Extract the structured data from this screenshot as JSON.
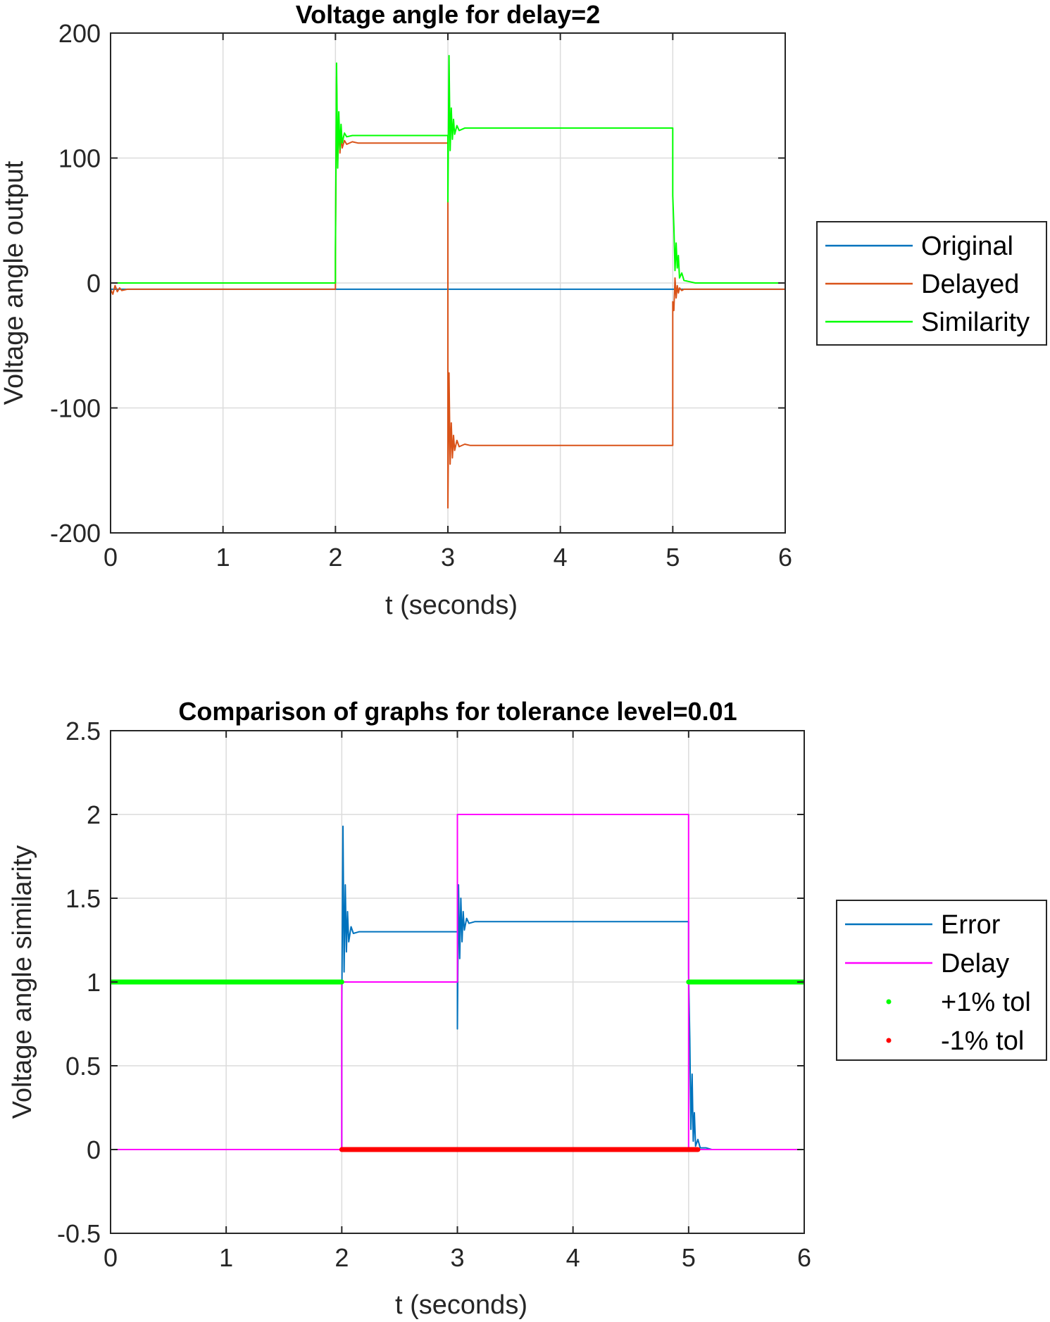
{
  "chart_data": [
    {
      "type": "line",
      "title": "Voltage angle for delay=2",
      "xlabel": "t (seconds)",
      "ylabel": "Voltage angle output",
      "xlim": [
        0,
        6
      ],
      "ylim": [
        -200,
        200
      ],
      "xticks": [
        0,
        1,
        2,
        3,
        4,
        5,
        6
      ],
      "yticks": [
        -200,
        -100,
        0,
        100,
        200
      ],
      "xtick_labels": [
        "0",
        "1",
        "2",
        "3",
        "4",
        "5",
        "6"
      ],
      "ytick_labels": [
        "-200",
        "-100",
        "0",
        "100",
        "200"
      ],
      "grid": true,
      "legend_position": "right",
      "series": [
        {
          "name": "Original",
          "color": "#0072BD",
          "x": [
            0,
            2,
            2.02,
            6
          ],
          "y": [
            -5,
            -5,
            -5,
            -5
          ]
        },
        {
          "name": "Delayed",
          "color": "#D95319",
          "x": [
            0,
            0.02,
            0.04,
            0.06,
            0.08,
            0.1,
            0.15,
            2,
            2,
            2.01,
            2.02,
            2.03,
            2.04,
            2.05,
            2.06,
            2.08,
            2.1,
            2.15,
            2.2,
            3,
            3,
            3.01,
            3.02,
            3.03,
            3.04,
            3.05,
            3.06,
            3.08,
            3.1,
            3.15,
            3.2,
            5,
            5,
            5.01,
            5.02,
            5.03,
            5.04,
            5.05,
            5.06,
            5.08,
            5.1,
            5.15,
            5.2,
            6
          ],
          "y": [
            -5,
            -9,
            -2,
            -7,
            -4,
            -6,
            -5,
            -5,
            20,
            165,
            97,
            128,
            104,
            118,
            108,
            114,
            111,
            113,
            112,
            112,
            -180,
            -72,
            -145,
            -112,
            -140,
            -122,
            -134,
            -126,
            -131,
            -129,
            -130,
            -130,
            -15,
            -22,
            4,
            -12,
            -2,
            -8,
            -4,
            -6,
            -5,
            -5,
            -5,
            -5
          ]
        },
        {
          "name": "Similarity",
          "color": "#00FF00",
          "x": [
            0,
            2,
            2,
            2.01,
            2.02,
            2.03,
            2.04,
            2.05,
            2.06,
            2.08,
            2.1,
            2.15,
            2.2,
            3,
            3,
            3.01,
            3.02,
            3.03,
            3.04,
            3.05,
            3.06,
            3.08,
            3.1,
            3.15,
            3.2,
            5,
            5,
            5.01,
            5.02,
            5.03,
            5.04,
            5.05,
            5.06,
            5.08,
            5.1,
            5.15,
            5.2,
            6
          ],
          "y": [
            0,
            0,
            25,
            176,
            92,
            137,
            107,
            127,
            112,
            120,
            117,
            118,
            118,
            118,
            65,
            182,
            106,
            140,
            115,
            131,
            119,
            126,
            122,
            124,
            124,
            124,
            70,
            45,
            10,
            32,
            12,
            22,
            4,
            8,
            2,
            1,
            0,
            0
          ]
        }
      ]
    },
    {
      "type": "line",
      "title": "Comparison of graphs for tolerance level=0.01",
      "xlabel": "t (seconds)",
      "ylabel": "Voltage angle similarity",
      "xlim": [
        0,
        6
      ],
      "ylim": [
        -0.5,
        2.5
      ],
      "xticks": [
        0,
        1,
        2,
        3,
        4,
        5,
        6
      ],
      "yticks": [
        -0.5,
        0,
        0.5,
        1,
        1.5,
        2,
        2.5
      ],
      "xtick_labels": [
        "0",
        "1",
        "2",
        "3",
        "4",
        "5",
        "6"
      ],
      "ytick_labels": [
        "-0.5",
        "0",
        "0.5",
        "1",
        "1.5",
        "2",
        "2.5"
      ],
      "grid": true,
      "legend_position": "right",
      "series": [
        {
          "name": "Error",
          "color": "#0072BD",
          "x": [
            0,
            2,
            2,
            2.01,
            2.02,
            2.03,
            2.04,
            2.05,
            2.06,
            2.08,
            2.1,
            2.15,
            2.2,
            3,
            3,
            3.01,
            3.02,
            3.03,
            3.04,
            3.05,
            3.06,
            3.08,
            3.1,
            3.15,
            3.2,
            5,
            5,
            5.01,
            5.02,
            5.03,
            5.04,
            5.05,
            5.06,
            5.08,
            5.1,
            5.15,
            5.2,
            6
          ],
          "y": [
            0,
            0,
            0.8,
            1.93,
            1.06,
            1.58,
            1.18,
            1.42,
            1.24,
            1.33,
            1.29,
            1.3,
            1.3,
            1.3,
            0.72,
            1.58,
            1.14,
            1.5,
            1.24,
            1.42,
            1.31,
            1.38,
            1.35,
            1.36,
            1.36,
            1.36,
            1.05,
            0.66,
            0.12,
            0.45,
            0.05,
            0.22,
            0.02,
            0.06,
            0.01,
            0.01,
            0,
            0
          ]
        },
        {
          "name": "Delay",
          "color": "#FF00FF",
          "x": [
            0,
            2,
            2,
            3,
            3,
            5,
            5,
            6
          ],
          "y": [
            0,
            0,
            1,
            1,
            2,
            2,
            0,
            0
          ]
        },
        {
          "name": "+1% tol",
          "color": "#00FF00",
          "marker": "dot",
          "segments": [
            [
              0,
              2,
              1
            ],
            [
              5,
              6,
              1
            ]
          ]
        },
        {
          "name": "-1% tol",
          "color": "#FF0000",
          "marker": "dot",
          "segments": [
            [
              2,
              5.08,
              0
            ]
          ]
        }
      ]
    }
  ]
}
